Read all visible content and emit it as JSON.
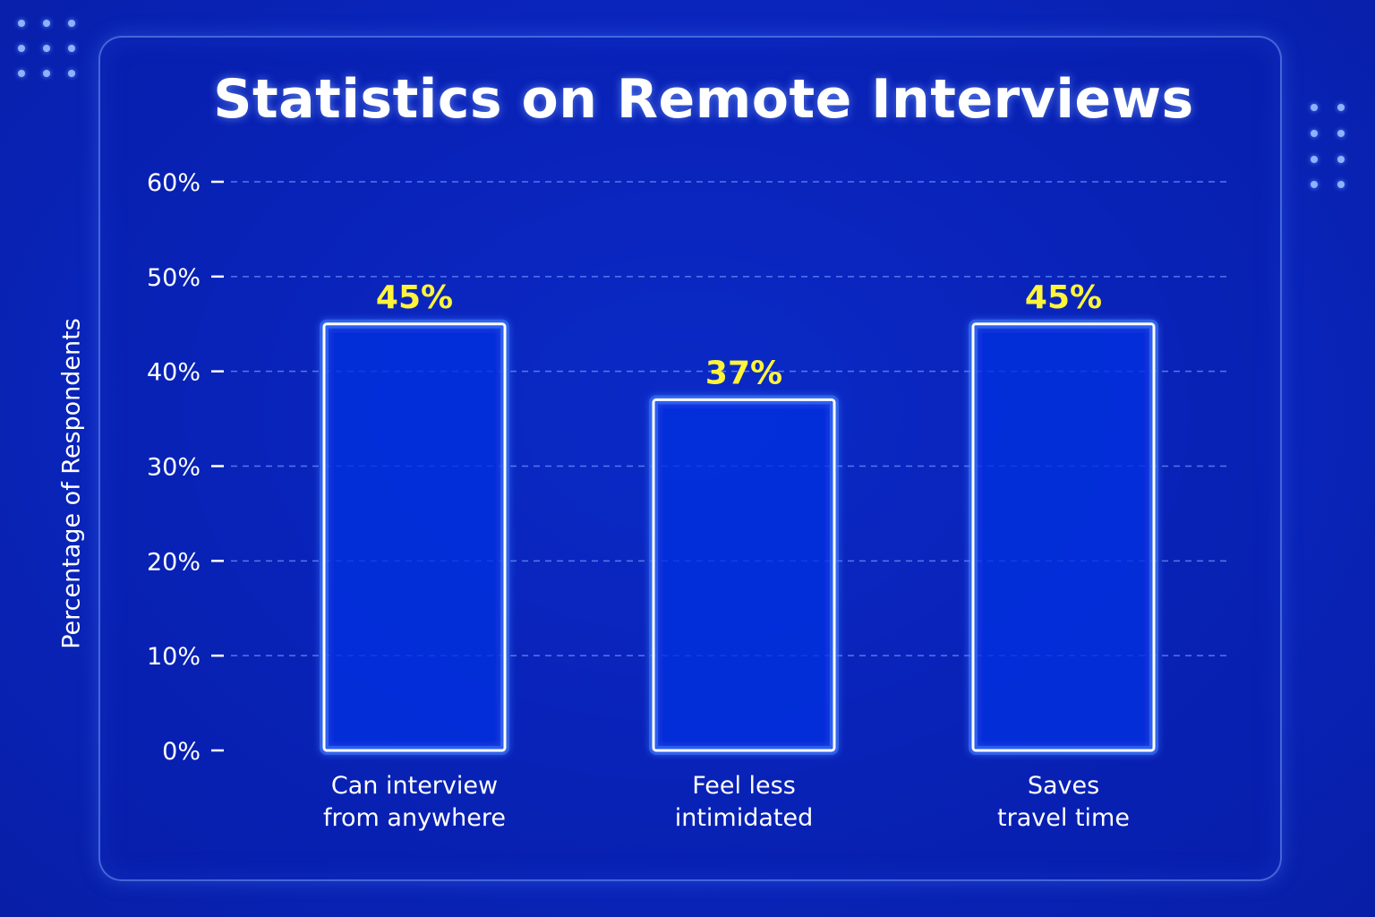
{
  "colors": {
    "background": "#0a27c2",
    "bar_stroke": "#ffffff",
    "bar_glow": "#3f7bff",
    "bar_fill": "#0b2ee0",
    "value_label": "#fff43a",
    "text": "#ffffff",
    "grid": "#6f93ff"
  },
  "chart_data": {
    "type": "bar",
    "title": "Statistics on Remote Interviews",
    "xlabel": "",
    "ylabel": "Percentage of Respondents",
    "ylim": [
      0,
      60
    ],
    "yticks": [
      "0%",
      "10%",
      "20%",
      "30%",
      "40%",
      "50%",
      "60%"
    ],
    "categories": [
      [
        "Can interview",
        "from anywhere"
      ],
      [
        "Feel less",
        "intimidated"
      ],
      [
        "Saves",
        "travel time"
      ]
    ],
    "values": [
      45,
      37,
      45
    ],
    "data_labels": [
      "45%",
      "37%",
      "45%"
    ],
    "grid": true
  }
}
